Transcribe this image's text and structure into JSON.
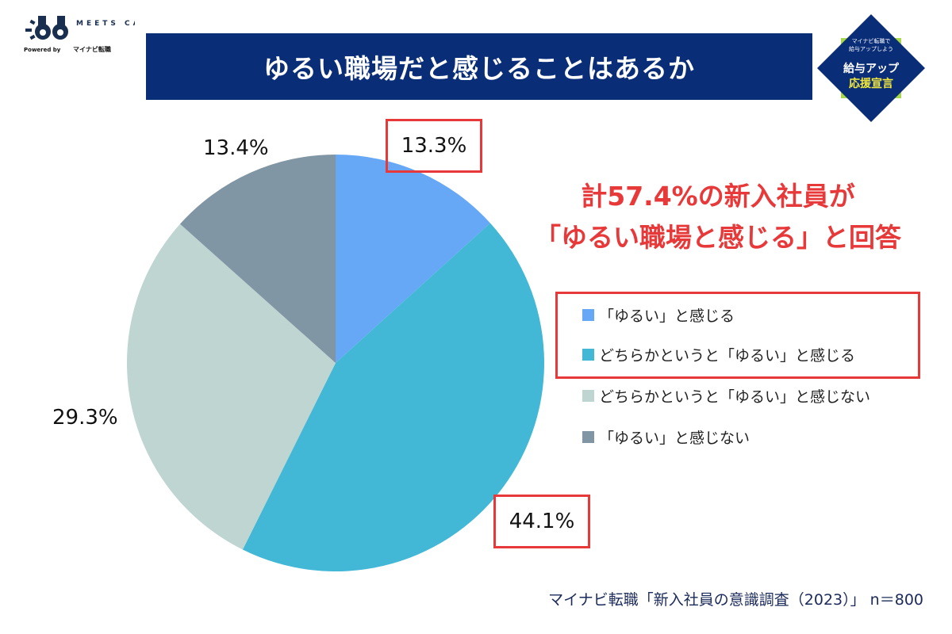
{
  "logo": {
    "name": "MEETS CAREER",
    "powered_by": "Powered by",
    "partner": "マイナビ転職"
  },
  "badge": {
    "line1": "マイナビ転職で",
    "line2": "給与アップしよう",
    "line3": "給与アップ",
    "line4": "応援宣言"
  },
  "title": "ゆるい職場だと感じることはあるか",
  "headline": {
    "line1": "計57.4%の新入社員が",
    "line2": "「ゆるい職場と感じる」と回答"
  },
  "source": "マイナビ転職「新入社員の意識調査（2023）」 n＝800",
  "colors": {
    "title_bar": "#0a2d78",
    "highlight": "#e8393a"
  },
  "chart_data": {
    "type": "pie",
    "start": "top, clockwise",
    "slices": [
      {
        "label": "「ゆるい」と感じる",
        "value": 13.3,
        "display": "13.3%",
        "color": "#66a8f5",
        "highlighted": true
      },
      {
        "label": "どちらかというと「ゆるい」と感じる",
        "value": 44.1,
        "display": "44.1%",
        "color": "#42b8d6",
        "highlighted": true
      },
      {
        "label": "どちらかというと「ゆるい」と感じない",
        "value": 29.3,
        "display": "29.3%",
        "color": "#bfd5d2",
        "highlighted": false
      },
      {
        "label": "「ゆるい」と感じない",
        "value": 13.4,
        "display": "13.4%",
        "color": "#8196a4",
        "highlighted": false
      }
    ],
    "legend_position": "right"
  }
}
